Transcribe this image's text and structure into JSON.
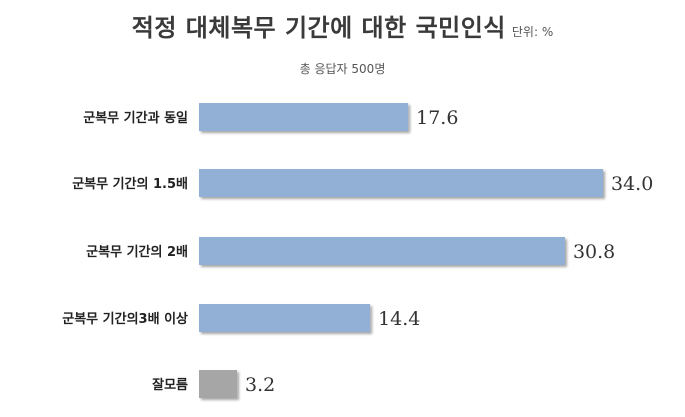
{
  "header": {
    "title": "적정 대체복무 기간에 대한 국민인식",
    "unit": "단위: %",
    "subtitle": "총 응답자 500명"
  },
  "chart_data": {
    "type": "bar",
    "orientation": "horizontal",
    "title": "적정 대체복무 기간에 대한 국민인식",
    "subtitle": "총 응답자 500명",
    "unit": "단위: %",
    "categories": [
      "군복무 기간과 동일",
      "군복무 기간의 1.5배",
      "군복무 기간의 2배",
      "군복무 기간의3배 이상",
      "잘모름"
    ],
    "values": [
      17.6,
      34.0,
      30.8,
      14.4,
      3.2
    ],
    "value_labels": [
      "17.6",
      "34.0",
      "30.8",
      "14.4",
      "3.2"
    ],
    "bar_colors": [
      "#92b0d6",
      "#92b0d6",
      "#92b0d6",
      "#92b0d6",
      "#a6a6a6"
    ],
    "xlim": [
      0,
      34.0
    ],
    "grid": false,
    "legend": "none"
  }
}
